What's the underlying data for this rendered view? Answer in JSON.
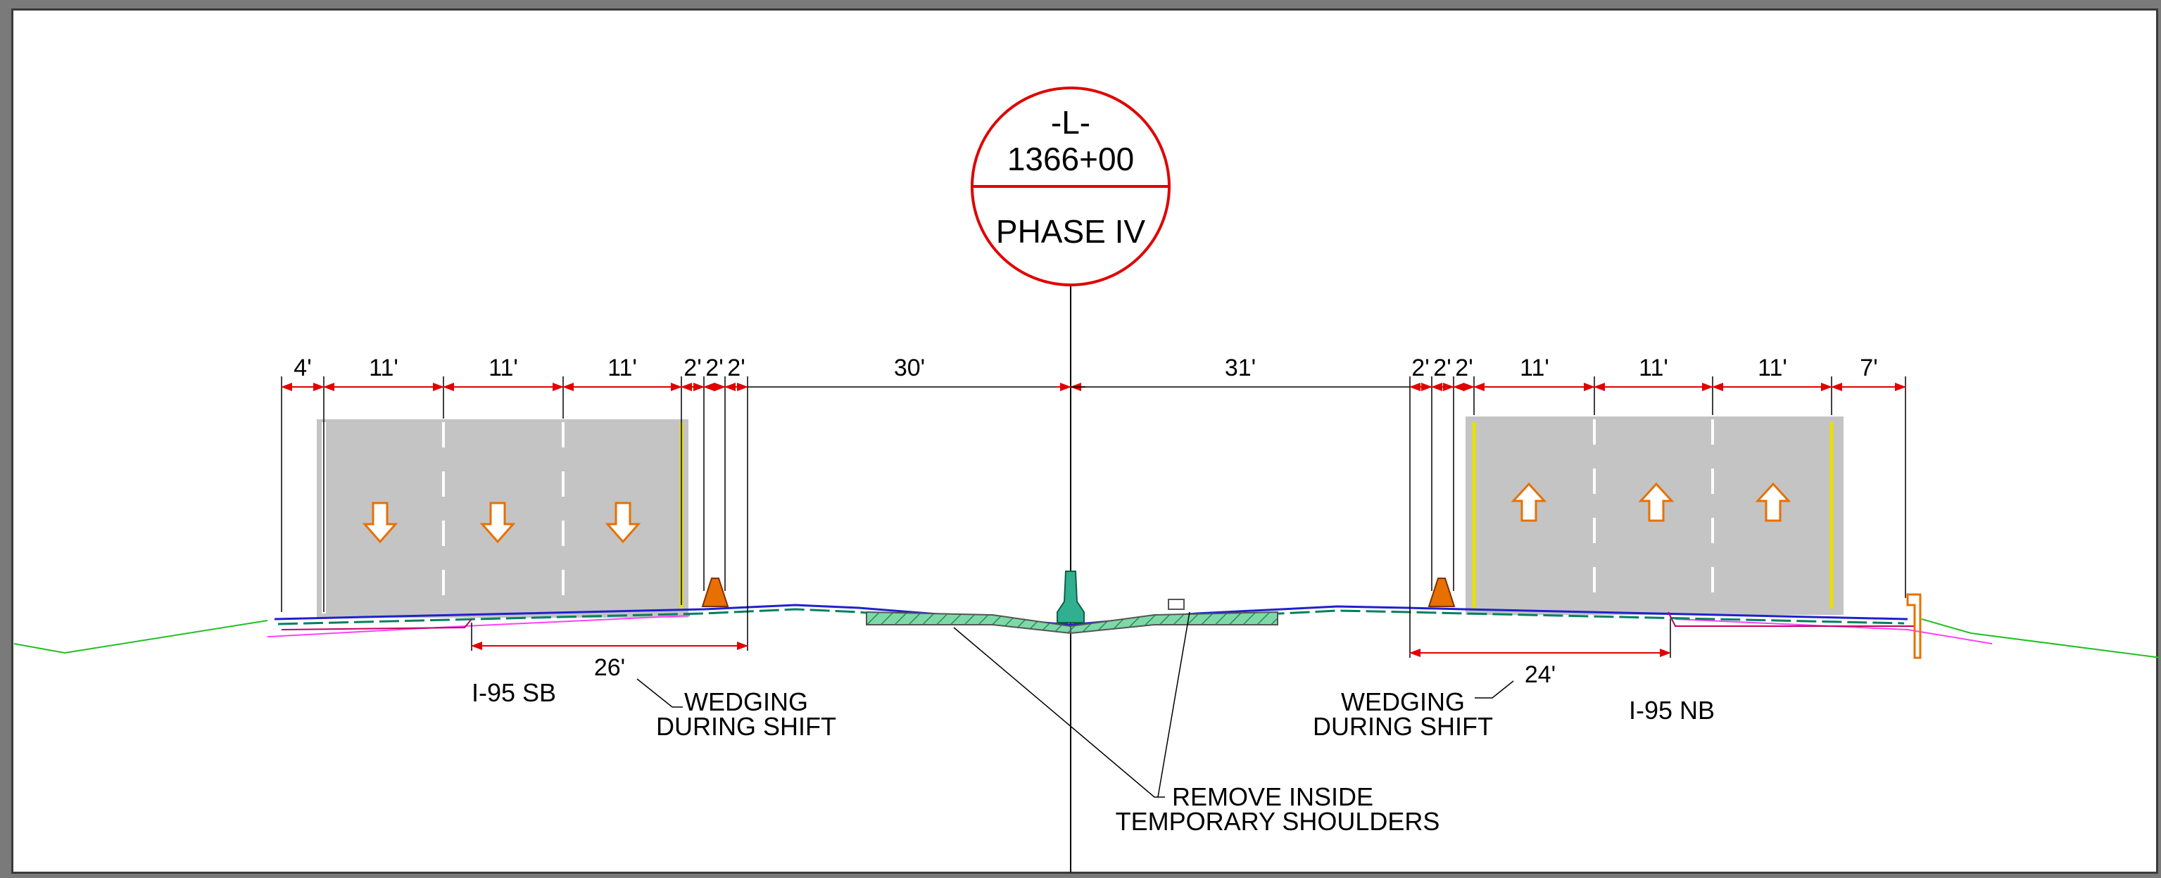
{
  "station": {
    "line": "-L-",
    "number": "1366+00",
    "phase": "PHASE IV"
  },
  "dimensions": {
    "sb": [
      "4'",
      "11'",
      "11'",
      "11'",
      "2'",
      "2'",
      "2'"
    ],
    "median_left": "30'",
    "median_right": "31'",
    "nb": [
      "2'",
      "2'",
      "2'",
      "11'",
      "11'",
      "11'",
      "7'"
    ],
    "sb_wedge": "26'",
    "nb_wedge": "24'"
  },
  "labels": {
    "sb": "I-95 SB",
    "nb": "I-95 NB",
    "wedging_line1": "WEDGING",
    "wedging_line2": "DURING SHIFT",
    "remove_line1": "REMOVE INSIDE",
    "remove_line2": "TEMPORARY SHOULDERS"
  },
  "colors": {
    "dimension": "#e00000",
    "pavement": "#c4c4c4",
    "edge_line": "#e8e000",
    "arrow": "#e87000",
    "barrier": "#30b090",
    "ground": "#20c020"
  },
  "traffic_direction": {
    "sb": "down",
    "nb": "up"
  }
}
